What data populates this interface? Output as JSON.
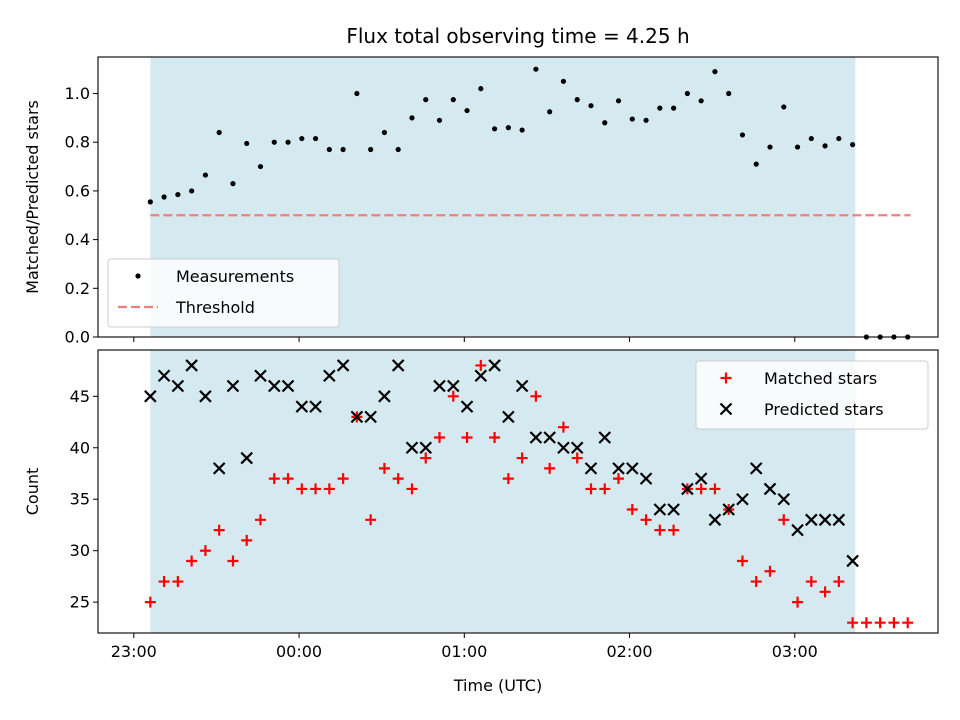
{
  "chart_data": [
    {
      "type": "scatter",
      "title": "Flux total observing time = 4.25 h",
      "xlabel": "",
      "ylabel": "Matched/Predicted stars",
      "ylim": [
        0,
        1.15
      ],
      "yticks": [
        0.0,
        0.2,
        0.4,
        0.6,
        0.8,
        1.0
      ],
      "ytick_labels": [
        "0.0",
        "0.2",
        "0.4",
        "0.6",
        "0.8",
        "1.0"
      ],
      "x_unit": "minutes after 23:00 UTC",
      "xlim": [
        -13,
        292
      ],
      "shaded_interval": [
        6,
        262
      ],
      "shaded_color": "#d4eaf0",
      "legend": {
        "position": "lower-left",
        "entries": [
          {
            "label": "Measurements",
            "marker": "dot",
            "color": "#000000"
          },
          {
            "label": "Threshold",
            "marker": "dashed-line",
            "color": "#f08080"
          }
        ]
      },
      "threshold": {
        "y": 0.5,
        "x_range": [
          6,
          282
        ],
        "color": "#f08080"
      },
      "series": [
        {
          "name": "Measurements",
          "marker": "dot",
          "color": "#000000",
          "x": [
            6,
            11,
            16,
            21,
            26,
            31,
            36,
            41,
            46,
            51,
            56,
            61,
            66,
            71,
            76,
            81,
            86,
            91,
            96,
            101,
            106,
            111,
            116,
            121,
            126,
            131,
            136,
            141,
            146,
            151,
            156,
            161,
            166,
            171,
            176,
            181,
            186,
            191,
            196,
            201,
            206,
            211,
            216,
            221,
            226,
            231,
            236,
            241,
            246,
            251,
            256,
            261,
            266,
            271,
            276,
            281
          ],
          "y": [
            0.555,
            0.575,
            0.585,
            0.6,
            0.665,
            0.84,
            0.63,
            0.795,
            0.7,
            0.8,
            0.8,
            0.815,
            0.815,
            0.77,
            0.77,
            1.0,
            0.77,
            0.84,
            0.77,
            0.9,
            0.975,
            0.89,
            0.975,
            0.93,
            1.02,
            0.855,
            0.86,
            0.85,
            1.1,
            0.925,
            1.05,
            0.975,
            0.95,
            0.88,
            0.97,
            0.895,
            0.89,
            0.94,
            0.94,
            1.0,
            0.97,
            1.09,
            1.0,
            0.83,
            0.71,
            0.78,
            0.945,
            0.78,
            0.815,
            0.785,
            0.815,
            0.79,
            0.0,
            0.0,
            0.0,
            0.0
          ]
        }
      ]
    },
    {
      "type": "scatter",
      "title": "",
      "xlabel": "Time (UTC)",
      "ylabel": "Count",
      "ylim": [
        22,
        49.5
      ],
      "yticks": [
        25,
        30,
        35,
        40,
        45
      ],
      "ytick_labels": [
        "25",
        "30",
        "35",
        "40",
        "45"
      ],
      "x_unit": "minutes after 23:00 UTC",
      "xlim": [
        -13,
        292
      ],
      "xticks": [
        0,
        60,
        120,
        180,
        240
      ],
      "xtick_labels": [
        "23:00",
        "00:00",
        "01:00",
        "02:00",
        "03:00"
      ],
      "shaded_interval": [
        6,
        262
      ],
      "shaded_color": "#d4eaf0",
      "legend": {
        "position": "top-right",
        "entries": [
          {
            "label": "Matched stars",
            "marker": "plus",
            "color": "#ff0000"
          },
          {
            "label": "Predicted stars",
            "marker": "x",
            "color": "#000000"
          }
        ]
      },
      "series": [
        {
          "name": "Matched stars",
          "marker": "plus",
          "color": "#ff0000",
          "x": [
            6,
            11,
            16,
            21,
            26,
            31,
            36,
            41,
            46,
            51,
            56,
            61,
            66,
            71,
            76,
            81,
            86,
            91,
            96,
            101,
            106,
            111,
            116,
            121,
            126,
            131,
            136,
            141,
            146,
            151,
            156,
            161,
            166,
            171,
            176,
            181,
            186,
            191,
            196,
            201,
            206,
            211,
            216,
            221,
            226,
            231,
            236,
            241,
            246,
            251,
            256,
            261,
            266,
            271,
            276,
            281
          ],
          "y": [
            25,
            27,
            27,
            29,
            30,
            32,
            29,
            31,
            33,
            37,
            37,
            36,
            36,
            36,
            37,
            43,
            33,
            38,
            37,
            36,
            39,
            41,
            45,
            41,
            48,
            41,
            37,
            39,
            45,
            38,
            42,
            39,
            36,
            36,
            37,
            34,
            33,
            32,
            32,
            36,
            36,
            36,
            34,
            29,
            27,
            28,
            33,
            25,
            27,
            26,
            27,
            23,
            23,
            23,
            23,
            23
          ]
        },
        {
          "name": "Predicted stars",
          "marker": "x",
          "color": "#000000",
          "x": [
            6,
            11,
            16,
            21,
            26,
            31,
            36,
            41,
            46,
            51,
            56,
            61,
            66,
            71,
            76,
            81,
            86,
            91,
            96,
            101,
            106,
            111,
            116,
            121,
            126,
            131,
            136,
            141,
            146,
            151,
            156,
            161,
            166,
            171,
            176,
            181,
            186,
            191,
            196,
            201,
            206,
            211,
            216,
            221,
            226,
            231,
            236,
            241,
            246,
            251,
            256,
            261
          ],
          "y": [
            45,
            47,
            46,
            48,
            45,
            38,
            46,
            39,
            47,
            46,
            46,
            44,
            44,
            47,
            48,
            43,
            43,
            45,
            48,
            40,
            40,
            46,
            46,
            44,
            47,
            48,
            43,
            46,
            41,
            41,
            40,
            40,
            38,
            41,
            38,
            38,
            37,
            34,
            34,
            36,
            37,
            33,
            34,
            35,
            38,
            36,
            35,
            32,
            33,
            33,
            33,
            29
          ]
        }
      ]
    }
  ]
}
